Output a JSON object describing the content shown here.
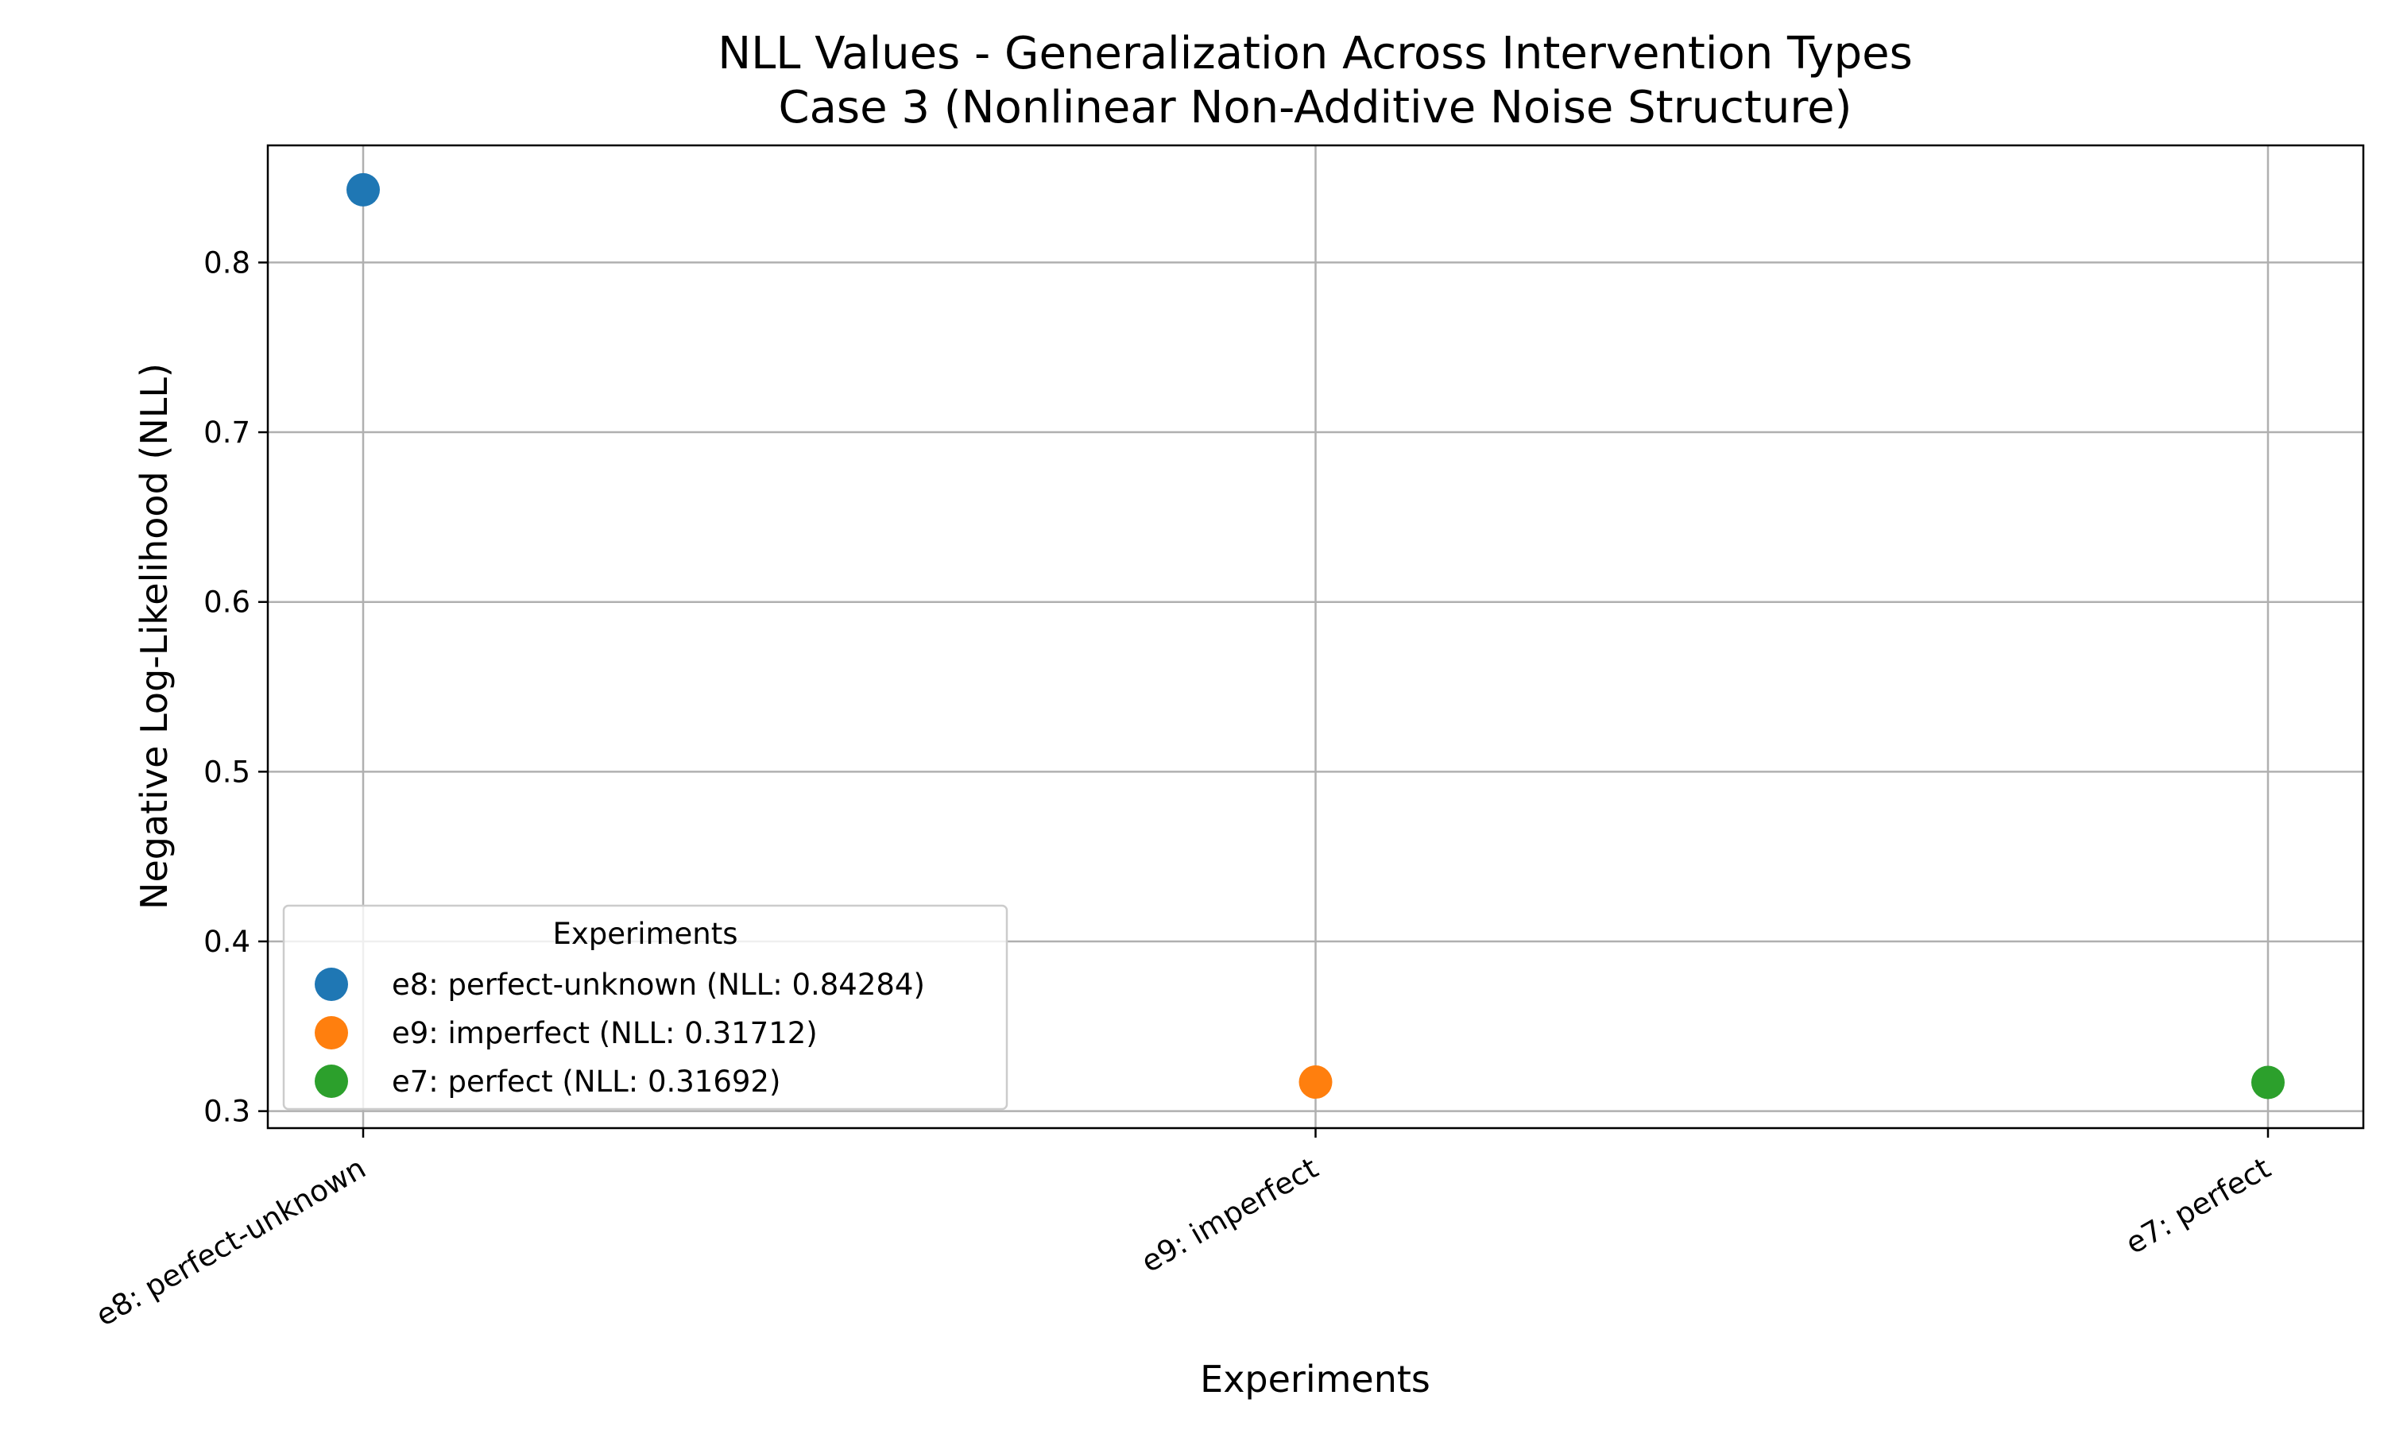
{
  "chart_data": {
    "type": "scatter",
    "title": "NLL Values - Generalization Across Intervention Types",
    "subtitle": "Case 3 (Nonlinear Non-Additive Noise Structure)",
    "xlabel": "Experiments",
    "ylabel": "Negative Log-Likelihood (NLL)",
    "categories": [
      "e8: perfect-unknown",
      "e9: imperfect",
      "e7: perfect"
    ],
    "ylim": [
      0.29,
      0.869
    ],
    "yticks": [
      "0.3",
      "0.4",
      "0.5",
      "0.6",
      "0.7",
      "0.8"
    ],
    "grid": true,
    "legend_title": "Experiments",
    "legend_position": "lower-left",
    "series": [
      {
        "name": "e8: perfect-unknown (NLL: 0.84284)",
        "category": "e8: perfect-unknown",
        "value": 0.84284,
        "color": "#1f77b4"
      },
      {
        "name": "e9: imperfect (NLL: 0.31712)",
        "category": "e9: imperfect",
        "value": 0.31712,
        "color": "#ff7f0e"
      },
      {
        "name": "e7: perfect (NLL: 0.31692)",
        "category": "e7: perfect",
        "value": 0.31692,
        "color": "#2ca02c"
      }
    ]
  }
}
